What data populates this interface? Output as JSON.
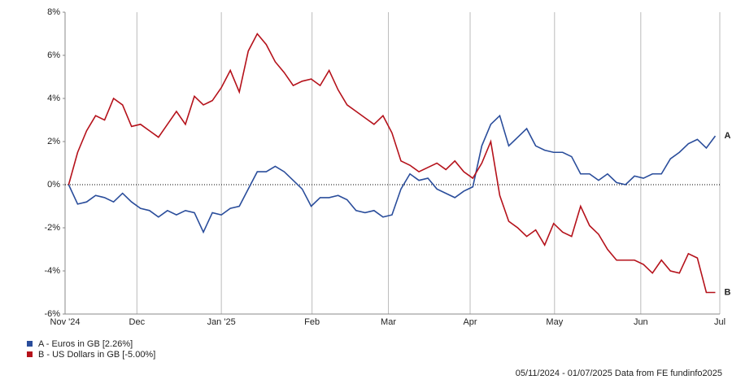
{
  "chart_data": {
    "type": "line",
    "xlim": [
      -0.4,
      72.5
    ],
    "xticks": [
      {
        "value": -0.4,
        "label": "Nov '24"
      },
      {
        "value": 7.6,
        "label": "Dec"
      },
      {
        "value": 17,
        "label": "Jan '25"
      },
      {
        "value": 27.1,
        "label": "Feb"
      },
      {
        "value": 35.6,
        "label": "Mar"
      },
      {
        "value": 44.7,
        "label": "Apr"
      },
      {
        "value": 54.1,
        "label": "May"
      },
      {
        "value": 63.7,
        "label": "Jun"
      },
      {
        "value": 72.5,
        "label": "Jul"
      }
    ],
    "ylim": [
      -6,
      8
    ],
    "yticks": [
      {
        "value": -6,
        "label": "-6%"
      },
      {
        "value": -4,
        "label": "-4%"
      },
      {
        "value": -2,
        "label": "-2%"
      },
      {
        "value": 0,
        "label": "0%"
      },
      {
        "value": 2,
        "label": "2%"
      },
      {
        "value": 4,
        "label": "4%"
      },
      {
        "value": 6,
        "label": "6%"
      },
      {
        "value": 8,
        "label": "8%"
      }
    ],
    "series": [
      {
        "name": "A - Euros in GB [2.26%]",
        "end_label": "A",
        "color": "#2a4d9b",
        "values": [
          0,
          -0.9,
          -0.8,
          -0.5,
          -0.6,
          -0.8,
          -0.4,
          -0.8,
          -1.1,
          -1.2,
          -1.5,
          -1.2,
          -1.4,
          -1.2,
          -1.3,
          -2.2,
          -1.3,
          -1.4,
          -1.1,
          -1.0,
          -0.2,
          0.6,
          0.6,
          0.85,
          0.6,
          0.2,
          -0.2,
          -1.0,
          -0.6,
          -0.6,
          -0.5,
          -0.7,
          -1.2,
          -1.3,
          -1.2,
          -1.5,
          -1.4,
          -0.2,
          0.5,
          0.2,
          0.3,
          -0.2,
          -0.4,
          -0.6,
          -0.3,
          -0.1,
          1.8,
          2.8,
          3.2,
          1.8,
          2.2,
          2.6,
          1.8,
          1.6,
          1.5,
          1.5,
          1.3,
          0.5,
          0.5,
          0.2,
          0.5,
          0.1,
          0.0,
          0.4,
          0.3,
          0.5,
          0.5,
          1.2,
          1.5,
          1.9,
          2.1,
          1.7,
          2.26
        ]
      },
      {
        "name": "B - US Dollars in GB [-5.00%]",
        "end_label": "B",
        "color": "#b5121b",
        "values": [
          0,
          1.5,
          2.5,
          3.2,
          3.0,
          4.0,
          3.7,
          2.7,
          2.8,
          2.5,
          2.2,
          2.8,
          3.4,
          2.8,
          4.1,
          3.7,
          3.9,
          4.5,
          5.3,
          4.3,
          6.2,
          7.0,
          6.5,
          5.7,
          5.2,
          4.6,
          4.8,
          4.9,
          4.6,
          5.3,
          4.4,
          3.7,
          3.4,
          3.1,
          2.8,
          3.2,
          2.4,
          1.1,
          0.9,
          0.6,
          0.8,
          1.0,
          0.7,
          1.1,
          0.6,
          0.3,
          1.0,
          2.0,
          -0.5,
          -1.7,
          -2.0,
          -2.4,
          -2.1,
          -2.8,
          -1.8,
          -2.2,
          -2.4,
          -1.0,
          -1.9,
          -2.3,
          -3.0,
          -3.5,
          -3.5,
          -3.5,
          -3.7,
          -4.1,
          -3.5,
          -4.0,
          -4.1,
          -3.2,
          -3.4,
          -5.0,
          -5.0
        ]
      }
    ],
    "zero_line": true,
    "footer": "05/11/2024 - 01/07/2025 Data from FE fundinfo2025"
  }
}
